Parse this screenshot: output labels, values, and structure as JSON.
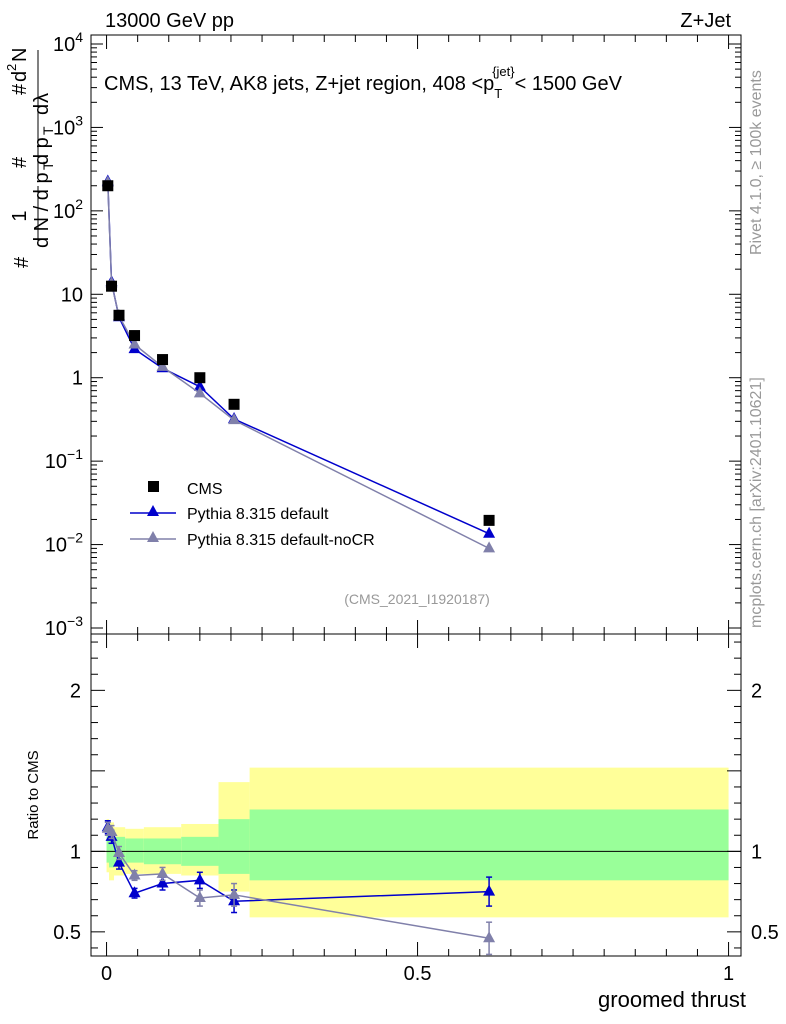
{
  "header": {
    "left": "13000 GeV pp",
    "right": "Z+Jet"
  },
  "side": {
    "rivet": "Rivet 4.1.0, ≥ 100k events",
    "mcplots": "mcplots.cern.ch [arXiv:2401.10621]"
  },
  "colors": {
    "cms": "#000000",
    "default": "#0000cc",
    "nocr": "#8080aa",
    "band_outer": "#ffff99",
    "band_inner": "#99ff99"
  },
  "chart_data": {
    "type": "line",
    "title": "CMS, 13 TeV, AK8 jets, Z+jet region, 408 <p_T^{jet}< 1500 GeV",
    "title_parts": {
      "main": "CMS, 13 TeV, AK8 jets, Z+jet region, 408 <p",
      "sub": "T",
      "sup": "{jet}",
      "end": "< 1500 GeV"
    },
    "watermark": "(CMS_2021_I1920187)",
    "xlabel": "groomed thrust",
    "ylabel_text": "1 / dN/dp_T  d²N/dp_T dλ",
    "xlim": [
      -0.025,
      1.02
    ],
    "x_ticks": [
      0,
      0.5,
      1
    ],
    "x_tick_labels": [
      "0",
      "0.5",
      "1"
    ],
    "main_panel": {
      "yscale": "log",
      "ylim": [
        0.001,
        10000
      ],
      "y_ticks": [
        0.001,
        0.01,
        0.1,
        1,
        10,
        100,
        1000,
        10000
      ],
      "y_tick_labels": [
        {
          "base": "10",
          "exp": "−3"
        },
        {
          "base": "10",
          "exp": "−2"
        },
        {
          "base": "10",
          "exp": "−1"
        },
        {
          "base": "1",
          "exp": ""
        },
        {
          "base": "10",
          "exp": ""
        },
        {
          "base": "10",
          "exp": "2"
        },
        {
          "base": "10",
          "exp": "3"
        },
        {
          "base": "10",
          "exp": "4"
        }
      ]
    },
    "ratio_panel": {
      "ylabel": "Ratio to CMS",
      "ylim": [
        0.35,
        2.35
      ],
      "y_ticks": [
        0.5,
        1,
        2
      ],
      "y_tick_labels": [
        "0.5",
        "1",
        "2"
      ],
      "bands": [
        {
          "x0": 0.0,
          "x1": 0.004,
          "outer": [
            0.87,
            1.2
          ],
          "inner": [
            0.93,
            1.12
          ]
        },
        {
          "x0": 0.004,
          "x1": 0.012,
          "outer": [
            0.82,
            1.18
          ],
          "inner": [
            0.9,
            1.1
          ]
        },
        {
          "x0": 0.012,
          "x1": 0.03,
          "outer": [
            0.85,
            1.15
          ],
          "inner": [
            0.92,
            1.09
          ]
        },
        {
          "x0": 0.03,
          "x1": 0.06,
          "outer": [
            0.86,
            1.14
          ],
          "inner": [
            0.93,
            1.08
          ]
        },
        {
          "x0": 0.06,
          "x1": 0.12,
          "outer": [
            0.86,
            1.15
          ],
          "inner": [
            0.92,
            1.08
          ]
        },
        {
          "x0": 0.12,
          "x1": 0.18,
          "outer": [
            0.85,
            1.17
          ],
          "inner": [
            0.91,
            1.09
          ]
        },
        {
          "x0": 0.18,
          "x1": 0.23,
          "outer": [
            0.75,
            1.43
          ],
          "inner": [
            0.86,
            1.2
          ]
        },
        {
          "x0": 0.23,
          "x1": 1.0,
          "outer": [
            0.59,
            1.52
          ],
          "inner": [
            0.82,
            1.26
          ]
        }
      ]
    },
    "series": [
      {
        "name": "CMS",
        "kind": "data",
        "marker": "square",
        "x": [
          0.002,
          0.008,
          0.02,
          0.045,
          0.09,
          0.15,
          0.205,
          0.615
        ],
        "y": [
          200,
          12.5,
          5.6,
          3.2,
          1.65,
          1.0,
          0.48,
          0.0195
        ]
      },
      {
        "name": "Pythia 8.315 default",
        "kind": "mc",
        "marker": "triangle",
        "x": [
          0.002,
          0.008,
          0.02,
          0.045,
          0.09,
          0.15,
          0.205,
          0.615
        ],
        "y": [
          225,
          14,
          5.3,
          2.2,
          1.3,
          0.78,
          0.32,
          0.0135
        ],
        "ratio": [
          1.15,
          1.09,
          0.93,
          0.74,
          0.8,
          0.82,
          0.69,
          0.75
        ],
        "ratio_err": [
          0.04,
          0.04,
          0.04,
          0.03,
          0.04,
          0.05,
          0.07,
          0.09
        ]
      },
      {
        "name": "Pythia 8.315 default-noCR",
        "kind": "mc",
        "marker": "triangle",
        "x": [
          0.002,
          0.008,
          0.02,
          0.045,
          0.09,
          0.15,
          0.205,
          0.615
        ],
        "y": [
          218,
          13.5,
          5.5,
          2.5,
          1.35,
          0.65,
          0.31,
          0.009
        ],
        "ratio": [
          1.14,
          1.12,
          0.99,
          0.85,
          0.86,
          0.71,
          0.73,
          0.46
        ],
        "ratio_err": [
          0.04,
          0.04,
          0.04,
          0.03,
          0.04,
          0.05,
          0.07,
          0.1
        ]
      }
    ]
  }
}
